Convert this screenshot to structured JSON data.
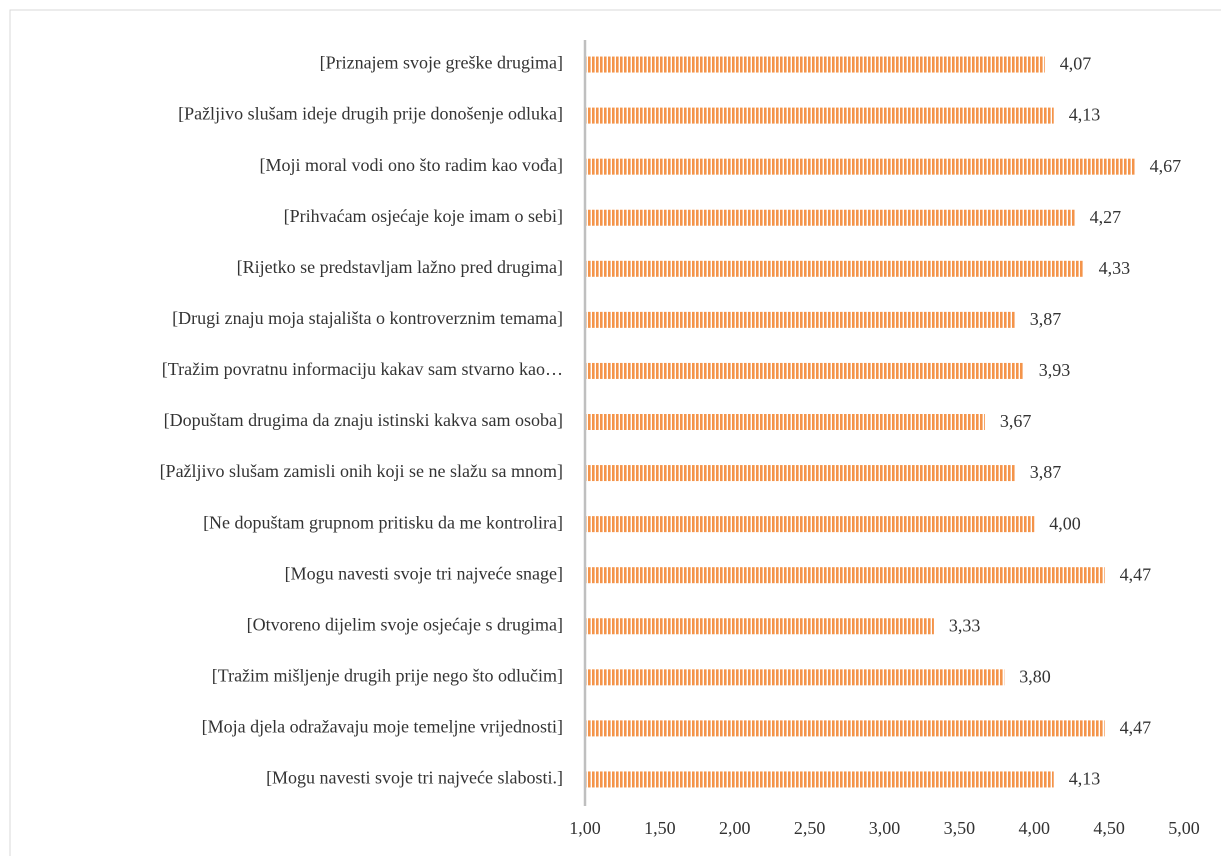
{
  "chart_data": {
    "type": "bar",
    "orientation": "horizontal",
    "categories": [
      "[Priznajem svoje greške drugima]",
      "[Pažljivo slušam ideje drugih prije donošenje odluka]",
      "[Moji moral vodi ono što radim kao vođa]",
      "[Prihvaćam osjećaje koje imam o sebi]",
      "[Rijetko se predstavljam lažno pred drugima]",
      "[Drugi znaju moja stajališta o kontroverznim temama]",
      "[Tražim povratnu informaciju kakav sam stvarno kao…",
      "[Dopuštam drugima da znaju istinski kakva sam osoba]",
      "[Pažljivo slušam zamisli onih koji se ne slažu sa mnom]",
      "[Ne dopuštam grupnom pritisku da me kontrolira]",
      "[Mogu navesti svoje tri najveće snage]",
      "[Otvoreno dijelim svoje osjećaje s drugima]",
      "[Tražim mišljenje drugih prije nego što odlučim]",
      "[Moja djela odražavaju moje temeljne vrijednosti]",
      "[Mogu navesti svoje tri najveće slabosti.]"
    ],
    "values": [
      4.07,
      4.13,
      4.67,
      4.27,
      4.33,
      3.87,
      3.93,
      3.67,
      3.87,
      4.0,
      4.47,
      3.33,
      3.8,
      4.47,
      4.13
    ],
    "value_labels": [
      "4,07",
      "4,13",
      "4,67",
      "4,27",
      "4,33",
      "3,87",
      "3,93",
      "3,67",
      "3,87",
      "4,00",
      "4,47",
      "3,33",
      "3,80",
      "4,47",
      "4,13"
    ],
    "color": "#f4944a",
    "xlim": [
      1,
      5
    ],
    "xticks": [
      {
        "value": 1,
        "label": "1,00"
      },
      {
        "value": 1.5,
        "label": "1,50"
      },
      {
        "value": 2,
        "label": "2,00"
      },
      {
        "value": 2.5,
        "label": "2,50"
      },
      {
        "value": 3,
        "label": "3,00"
      },
      {
        "value": 3.5,
        "label": "3,50"
      },
      {
        "value": 4,
        "label": "4,00"
      },
      {
        "value": 4.5,
        "label": "4,50"
      },
      {
        "value": 5,
        "label": "5,00"
      }
    ],
    "grid": false
  }
}
